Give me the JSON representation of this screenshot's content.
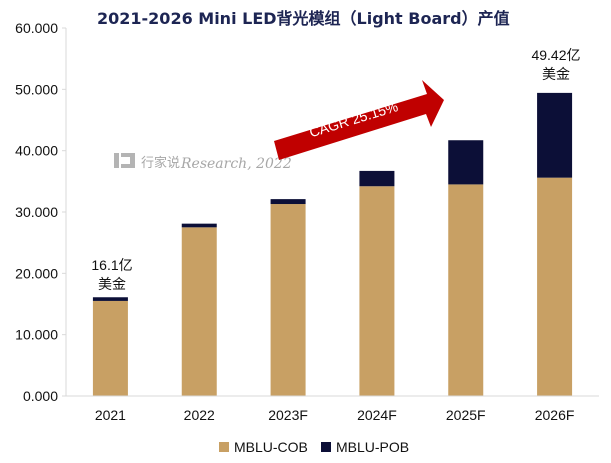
{
  "chart_data": {
    "type": "bar",
    "title": "2021-2026 Mini LED背光模组（Light Board）产值",
    "categories": [
      "2021",
      "2022",
      "2023F",
      "2024F",
      "2025F",
      "2026F"
    ],
    "series": [
      {
        "name": "MBLU-COB",
        "color": "#c8a064",
        "values": [
          15.5,
          27.5,
          31.3,
          34.2,
          34.5,
          35.6
        ]
      },
      {
        "name": "MBLU-POB",
        "color": "#0c0f37",
        "values": [
          0.6,
          0.6,
          0.8,
          2.5,
          7.2,
          13.82
        ]
      }
    ],
    "ylim": [
      0,
      60
    ],
    "yticks": [
      "0.000",
      "10.000",
      "20.000",
      "30.000",
      "40.000",
      "50.000",
      "60.000"
    ],
    "annotations": {
      "first_total_value": "16.1亿",
      "first_total_unit": "美金",
      "last_total_value": "49.42亿",
      "last_total_unit": "美金",
      "cagr": "CAGR 25.15%",
      "watermark_cn": "行家说",
      "watermark_en": "Research, 2022"
    },
    "legend": {
      "items": [
        "MBLU-COB",
        "MBLU-POB"
      ],
      "placement": "bottom-center"
    },
    "colors": {
      "cagr_arrow": "#c00000",
      "cagr_text": "#ffffff",
      "title": "#1d2553",
      "grid": "#d9d9d9"
    }
  }
}
